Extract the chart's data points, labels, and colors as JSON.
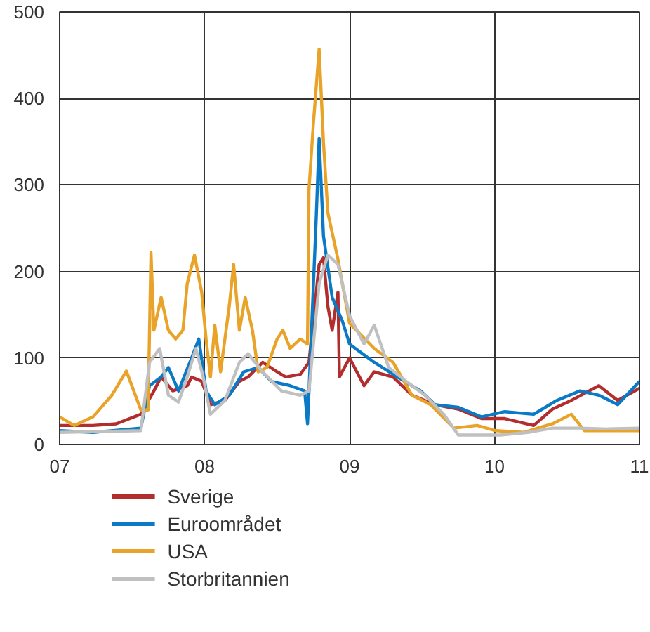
{
  "chart_data": {
    "type": "line",
    "xlim": [
      2007,
      2011
    ],
    "ylim": [
      0,
      500
    ],
    "xticks": [
      {
        "value": 2007,
        "label": "07"
      },
      {
        "value": 2008,
        "label": "08"
      },
      {
        "value": 2009,
        "label": "09"
      },
      {
        "value": 2010,
        "label": "10"
      },
      {
        "value": 2011,
        "label": "11"
      }
    ],
    "yticks": [
      0,
      100,
      200,
      300,
      400,
      500
    ],
    "grid": true,
    "legend": "bottom",
    "line_style": "solid",
    "marker": "none",
    "series": [
      {
        "name": "Sverige",
        "color": "#b22d2e",
        "x": [
          2007,
          2007.23,
          2007.39,
          2007.56,
          2007.65,
          2007.7,
          2007.78,
          2007.88,
          2007.91,
          2007.98,
          2008.04,
          2008.14,
          2008.24,
          2008.3,
          2008.4,
          2008.5,
          2008.56,
          2008.66,
          2008.72,
          2008.79,
          2008.82,
          2008.85,
          2008.88,
          2008.92,
          2008.93,
          2009.0,
          2009.1,
          2009.17,
          2009.3,
          2009.43,
          2009.59,
          2009.75,
          2009.91,
          2010.07,
          2010.27,
          2010.4,
          2010.53,
          2010.72,
          2010.85,
          2011.0
        ],
        "values": [
          22,
          22,
          24,
          35,
          62,
          78,
          62,
          68,
          78,
          73,
          46,
          51,
          73,
          78,
          95,
          84,
          78,
          81,
          95,
          208,
          216,
          160,
          132,
          176,
          78,
          100,
          68,
          84,
          78,
          57,
          46,
          41,
          30,
          30,
          22,
          41,
          51,
          68,
          51,
          65
        ]
      },
      {
        "name": "Euroområdet",
        "color": "#0a7ac6",
        "x": [
          2007,
          2007.23,
          2007.56,
          2007.62,
          2007.7,
          2007.75,
          2007.82,
          2007.91,
          2007.96,
          2008.01,
          2008.07,
          2008.17,
          2008.27,
          2008.37,
          2008.46,
          2008.59,
          2008.69,
          2008.71,
          2008.72,
          2008.77,
          2008.79,
          2008.82,
          2008.88,
          2008.95,
          2009.0,
          2009.17,
          2009.33,
          2009.49,
          2009.59,
          2009.75,
          2009.91,
          2010.07,
          2010.27,
          2010.43,
          2010.59,
          2010.72,
          2010.85,
          2011.0
        ],
        "values": [
          16,
          14,
          19,
          68,
          78,
          89,
          62,
          100,
          122,
          62,
          46,
          57,
          84,
          89,
          73,
          68,
          62,
          24,
          62,
          262,
          354,
          241,
          170,
          143,
          116,
          95,
          78,
          62,
          46,
          43,
          32,
          38,
          35,
          51,
          62,
          57,
          46,
          73
        ]
      },
      {
        "name": "USA",
        "color": "#e8a328",
        "x": [
          2007,
          2007.1,
          2007.23,
          2007.36,
          2007.46,
          2007.56,
          2007.61,
          2007.63,
          2007.65,
          2007.7,
          2007.75,
          2007.8,
          2007.85,
          2007.88,
          2007.93,
          2007.98,
          2008.01,
          2008.04,
          2008.07,
          2008.11,
          2008.17,
          2008.2,
          2008.24,
          2008.28,
          2008.33,
          2008.37,
          2008.43,
          2008.5,
          2008.54,
          2008.59,
          2008.66,
          2008.71,
          2008.72,
          2008.75,
          2008.79,
          2008.82,
          2008.85,
          2008.92,
          2009.0,
          2009.17,
          2009.3,
          2009.43,
          2009.56,
          2009.72,
          2009.88,
          2010.01,
          2010.2,
          2010.4,
          2010.53,
          2010.62,
          2010.78,
          2011.0
        ],
        "values": [
          32,
          22,
          32,
          57,
          85,
          40,
          40,
          222,
          132,
          170,
          132,
          122,
          132,
          186,
          219,
          176,
          122,
          78,
          138,
          84,
          160,
          208,
          132,
          170,
          132,
          84,
          89,
          122,
          132,
          111,
          122,
          116,
          295,
          370,
          457,
          349,
          268,
          214,
          140,
          111,
          95,
          57,
          46,
          19,
          22,
          16,
          14,
          24,
          35,
          16,
          16,
          16
        ]
      },
      {
        "name": "Storbritannien",
        "color": "#c0c0c0",
        "x": [
          2007,
          2007.56,
          2007.62,
          2007.69,
          2007.75,
          2007.82,
          2007.88,
          2007.94,
          2007.99,
          2008.04,
          2008.14,
          2008.24,
          2008.3,
          2008.4,
          2008.53,
          2008.66,
          2008.72,
          2008.79,
          2008.85,
          2008.92,
          2009.0,
          2009.1,
          2009.17,
          2009.27,
          2009.39,
          2009.52,
          2009.65,
          2009.75,
          2009.91,
          2010.04,
          2010.23,
          2010.4,
          2010.59,
          2010.78,
          2011.0
        ],
        "values": [
          14,
          16,
          95,
          111,
          57,
          49,
          78,
          111,
          78,
          35,
          51,
          95,
          105,
          84,
          62,
          57,
          62,
          186,
          219,
          208,
          149,
          116,
          138,
          89,
          73,
          57,
          35,
          11,
          11,
          11,
          14,
          19,
          19,
          18,
          19
        ]
      }
    ]
  }
}
